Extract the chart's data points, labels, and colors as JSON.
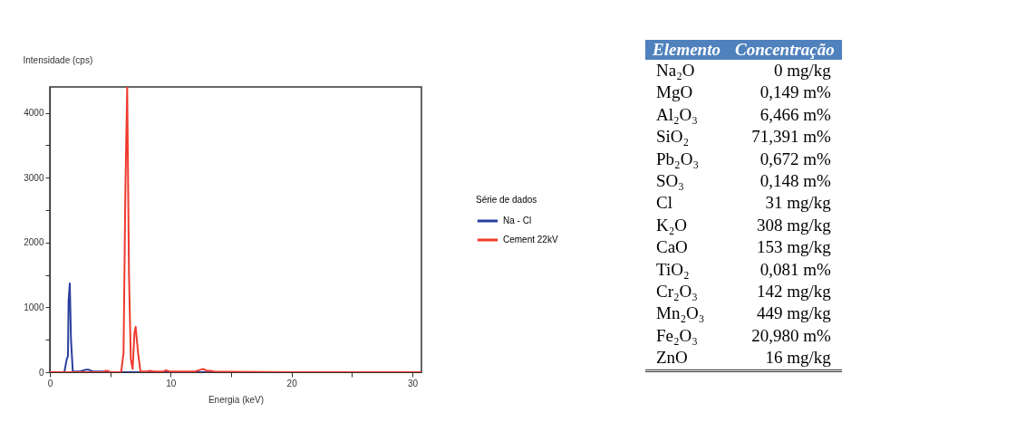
{
  "chart_data": [
    {
      "type": "line",
      "xlabel": "Energia (keV)",
      "ylabel": "Intensidade (cps)",
      "legend_title": "Série de dados",
      "legend": "right",
      "grid": false,
      "marker": "none",
      "line_style": "solid",
      "xlim": [
        0,
        30.75
      ],
      "ylim": [
        0,
        4400
      ],
      "xticks": [
        0,
        {
          "value": 5,
          "label": null
        },
        10,
        {
          "value": 15,
          "label": null
        },
        20,
        {
          "value": 25,
          "label": null
        },
        30
      ],
      "yticks": [
        0,
        {
          "value": 500,
          "label": null
        },
        1000,
        {
          "value": 1500,
          "label": null
        },
        2000,
        {
          "value": 2500,
          "label": null
        },
        3000,
        {
          "value": 3500,
          "label": null
        },
        4000
      ],
      "series": [
        {
          "name": "Na - Cl",
          "color": "#2a3f9d",
          "x": [
            0,
            1.2,
            1.4,
            1.5,
            1.55,
            1.65,
            1.75,
            1.9,
            2.5,
            3.0,
            3.2,
            3.4,
            3.6,
            4.5,
            5.0,
            10,
            15,
            19
          ],
          "values": [
            0,
            0,
            200,
            250,
            1100,
            1370,
            500,
            10,
            10,
            40,
            40,
            20,
            10,
            10,
            0,
            0,
            0,
            0
          ]
        },
        {
          "name": "Cement 22kV",
          "color": "#f03a2e",
          "x": [
            0,
            4.4,
            4.6,
            4.8,
            5.0,
            5.9,
            6.1,
            6.25,
            6.4,
            6.55,
            6.7,
            6.85,
            7.0,
            7.1,
            7.3,
            7.5,
            8.0,
            8.3,
            8.6,
            9.4,
            9.6,
            9.9,
            12.0,
            12.5,
            12.7,
            13.0,
            13.3,
            13.6,
            20,
            30.75
          ],
          "values": [
            0,
            0,
            20,
            20,
            0,
            0,
            300,
            2800,
            4390,
            1500,
            200,
            50,
            600,
            700,
            300,
            10,
            10,
            20,
            10,
            10,
            30,
            10,
            10,
            40,
            50,
            20,
            20,
            10,
            0,
            0
          ]
        }
      ]
    },
    {
      "type": "other",
      "annotations": [
        "Elemento",
        "Concentração",
        "Na₂O",
        "0 mg/kg",
        "MgO",
        "0,149 m%",
        "Al₂O₃",
        "6,466 m%",
        "SiO₂",
        "71,391 m%",
        "Pb₂O₃",
        "0,672 m%",
        "SO₃",
        "0,148 m%",
        "Cl",
        "31 mg/kg",
        "K₂O",
        "308 mg/kg",
        "CaO",
        "153 mg/kg",
        "TiO₂",
        "0,081 m%",
        "Cr₂O₃",
        "142 mg/kg",
        "Mn₂O₃",
        "449 mg/kg",
        "Fe₂O₃",
        "20,980 m%",
        "ZnO",
        "16 mg/kg"
      ]
    }
  ]
}
